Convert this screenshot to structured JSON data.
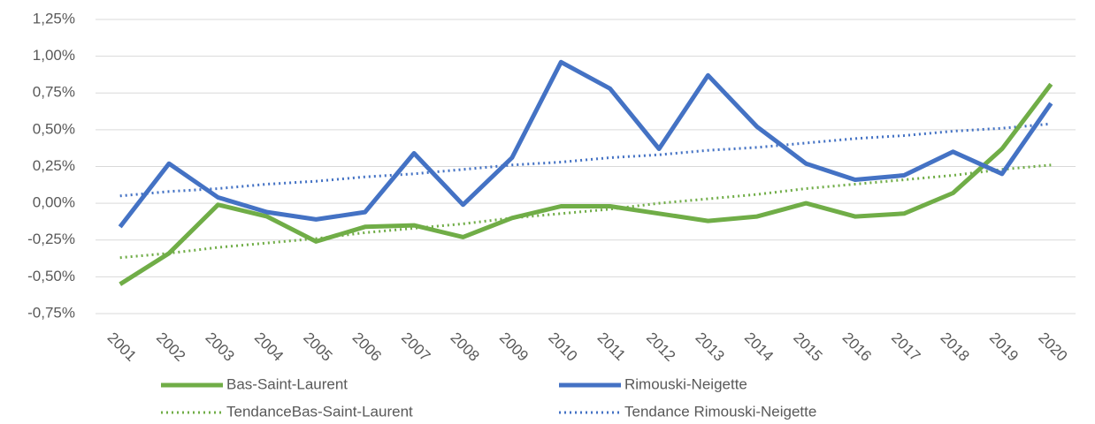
{
  "chart_data": {
    "type": "line",
    "categories": [
      "2001",
      "2002",
      "2003",
      "2004",
      "2005",
      "2006",
      "2007",
      "2008",
      "2009",
      "2010",
      "2011",
      "2012",
      "2013",
      "2014",
      "2015",
      "2016",
      "2017",
      "2018",
      "2019",
      "2020"
    ],
    "series": [
      {
        "name": "Bas-Saint-Laurent",
        "color": "#70ad47",
        "style": "solid",
        "values": [
          -0.55,
          -0.34,
          -0.01,
          -0.09,
          -0.26,
          -0.16,
          -0.15,
          -0.23,
          -0.1,
          -0.02,
          -0.02,
          -0.07,
          -0.12,
          -0.09,
          0.0,
          -0.09,
          -0.07,
          0.07,
          0.37,
          0.81
        ]
      },
      {
        "name": "Rimouski-Neigette",
        "color": "#4472c4",
        "style": "solid",
        "values": [
          -0.16,
          0.27,
          0.04,
          -0.06,
          -0.11,
          -0.06,
          0.34,
          -0.01,
          0.31,
          0.96,
          0.78,
          0.37,
          0.87,
          0.52,
          0.27,
          0.16,
          0.19,
          0.35,
          0.2,
          0.68
        ]
      },
      {
        "name": "TendanceBas-Saint-Laurent",
        "color": "#70ad47",
        "style": "dotted",
        "values": [
          -0.37,
          -0.34,
          -0.3,
          -0.27,
          -0.24,
          -0.2,
          -0.17,
          -0.14,
          -0.1,
          -0.07,
          -0.04,
          0.0,
          0.03,
          0.06,
          0.1,
          0.13,
          0.16,
          0.19,
          0.23,
          0.26
        ]
      },
      {
        "name": "Tendance Rimouski-Neigette",
        "color": "#4472c4",
        "style": "dotted",
        "values": [
          0.05,
          0.08,
          0.1,
          0.13,
          0.15,
          0.18,
          0.2,
          0.23,
          0.26,
          0.28,
          0.31,
          0.33,
          0.36,
          0.38,
          0.41,
          0.44,
          0.46,
          0.49,
          0.51,
          0.54
        ]
      }
    ],
    "ylim": [
      -0.75,
      1.25
    ],
    "yticks": [
      {
        "value": -0.75,
        "label": "-0,75%"
      },
      {
        "value": -0.5,
        "label": "-0,50%"
      },
      {
        "value": -0.25,
        "label": "-0,25%"
      },
      {
        "value": 0,
        "label": "0,00%"
      },
      {
        "value": 0.25,
        "label": "0,25%"
      },
      {
        "value": 0.5,
        "label": "0,50%"
      },
      {
        "value": 0.75,
        "label": "0,75%"
      },
      {
        "value": 1,
        "label": "1,00%"
      },
      {
        "value": 1.25,
        "label": "1,25%"
      }
    ],
    "grid": true,
    "legend": "bottom"
  }
}
